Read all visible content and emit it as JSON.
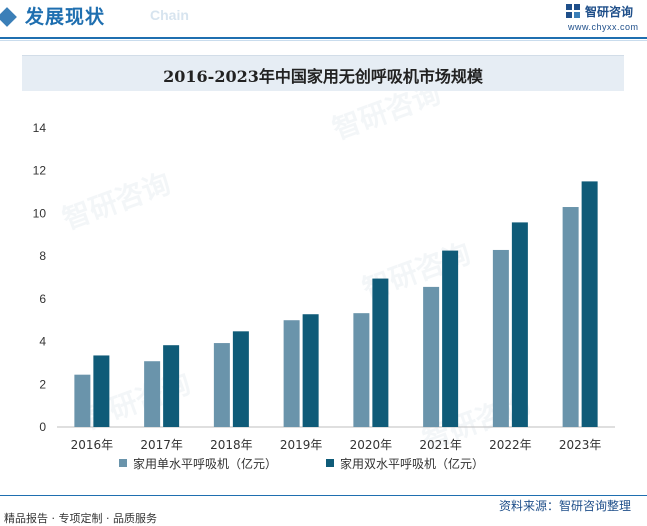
{
  "header": {
    "title": "发展现状",
    "subtitle": "Chain",
    "brand_name": "智研咨询",
    "brand_url": "www.chyxx.com"
  },
  "title": "2016-2023年中国家用无创呼吸机市场规模",
  "footer": {
    "left": "精品报告 · 专项定制 · 品质服务",
    "source": "资料来源：智研咨询整理"
  },
  "colors": {
    "series1": "#6a94ab",
    "series2": "#0f5b78",
    "accent": "#1f6fb0"
  },
  "chart_data": {
    "type": "bar",
    "title": "2016-2023年中国家用无创呼吸机市场规模",
    "categories": [
      "2016年",
      "2017年",
      "2018年",
      "2019年",
      "2020年",
      "2021年",
      "2022年",
      "2023年"
    ],
    "series": [
      {
        "name": "家用单水平呼吸机（亿元）",
        "values": [
          2.45,
          3.08,
          3.93,
          5.0,
          5.33,
          6.56,
          8.29,
          10.3
        ]
      },
      {
        "name": "家用双水平呼吸机（亿元）",
        "values": [
          3.35,
          3.83,
          4.48,
          5.28,
          6.95,
          8.26,
          9.58,
          11.5
        ]
      }
    ],
    "yticks": [
      "0",
      "2",
      "4",
      "6",
      "8",
      "10",
      "12",
      "14"
    ],
    "ylim": [
      0,
      14
    ],
    "legend": "bottom",
    "grid": false
  }
}
